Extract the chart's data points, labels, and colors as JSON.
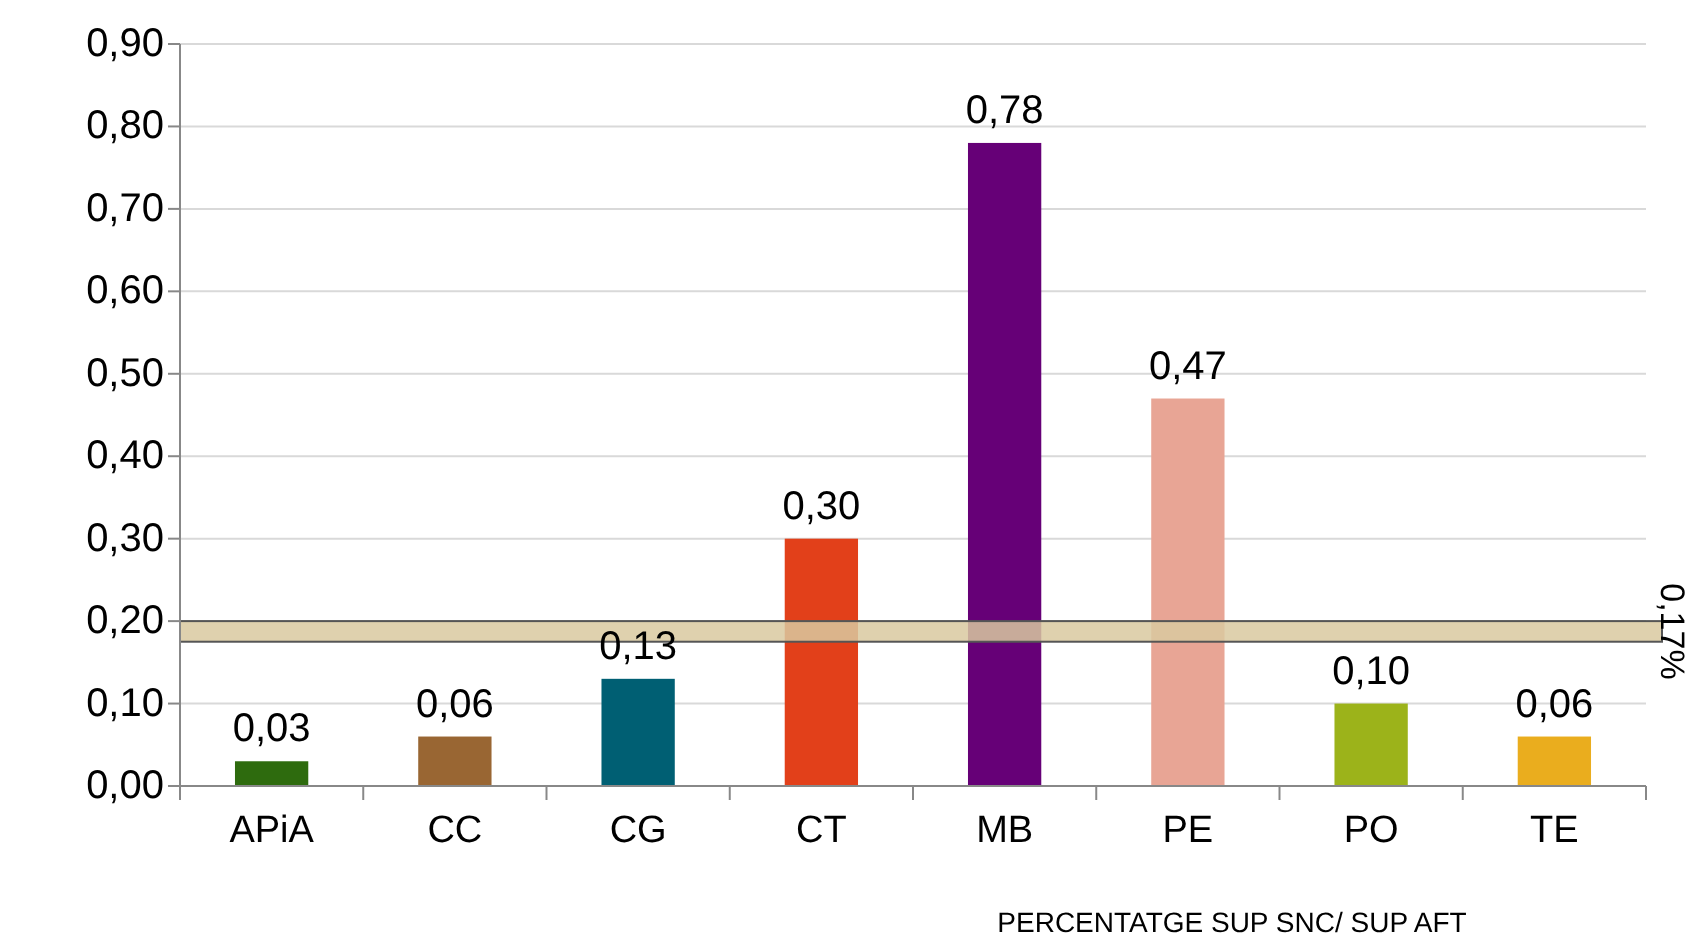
{
  "chart_data": {
    "type": "bar",
    "xlabel": "PERCENTATGE SUP SNC/ SUP AFT",
    "categories": [
      "APiA",
      "CC",
      "CG",
      "CT",
      "MB",
      "PE",
      "PO",
      "TE"
    ],
    "values": [
      0.03,
      0.06,
      0.13,
      0.3,
      0.78,
      0.47,
      0.1,
      0.06
    ],
    "value_labels": [
      "0,03",
      "0,06",
      "0,13",
      "0,30",
      "0,78",
      "0,47",
      "0,10",
      "0,06"
    ],
    "colors": [
      "#2e6b0e",
      "#996633",
      "#005f73",
      "#e2401a",
      "#660077",
      "#e8a595",
      "#9cb31a",
      "#eaad1e"
    ],
    "ylim": [
      0,
      0.9
    ],
    "yticks": [
      {
        "value": 0,
        "label": "0,00"
      },
      {
        "value": 0.1,
        "label": "0,10"
      },
      {
        "value": 0.2,
        "label": "0,20"
      },
      {
        "value": 0.3,
        "label": "0,30"
      },
      {
        "value": 0.4,
        "label": "0,40"
      },
      {
        "value": 0.5,
        "label": "0,50"
      },
      {
        "value": 0.6,
        "label": "0,60"
      },
      {
        "value": 0.7,
        "label": "0,70"
      },
      {
        "value": 0.8,
        "label": "0,80"
      },
      {
        "value": 0.9,
        "label": "0,90"
      }
    ],
    "bands": [
      {
        "axis": "y",
        "from": 0.175,
        "to": 0.2,
        "label": "0,17%",
        "color": "#d9c9a0"
      }
    ],
    "grid": "y"
  }
}
